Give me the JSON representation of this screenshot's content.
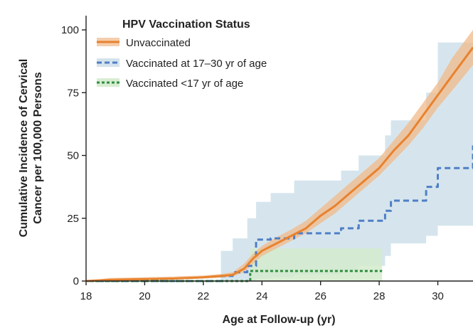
{
  "chart_data": {
    "type": "line",
    "title": "",
    "xlabel": "Age at Follow-up (yr)",
    "ylabel_lines": [
      "Cumulative Incidence of Cervical",
      "Cancer per 100,000 Persons"
    ],
    "xlim": [
      18,
      31.2
    ],
    "ylim": [
      0,
      105
    ],
    "x_ticks": [
      18,
      20,
      22,
      24,
      26,
      28,
      30
    ],
    "y_ticks": [
      0,
      25,
      50,
      75,
      100
    ],
    "grid": false,
    "legend": {
      "title": "HPV Vaccination Status",
      "placement": "top-left"
    },
    "series": [
      {
        "name": "Unvaccinated",
        "color": "#e8822e",
        "band_color": "#f0b98a",
        "line_style": "solid",
        "x": [
          18,
          18.8,
          20,
          21,
          22,
          22.6,
          23,
          23.4,
          23.7,
          24,
          24.5,
          25,
          25.5,
          26,
          26.5,
          27,
          27.5,
          28,
          28.5,
          29,
          29.5,
          30,
          30.5,
          31.2
        ],
        "y": [
          0,
          0.5,
          0.8,
          1,
          1.5,
          2,
          2.5,
          5,
          9,
          12,
          15,
          18,
          21,
          26,
          30,
          35,
          40,
          45,
          52,
          58,
          66,
          74,
          82,
          93
        ],
        "lower": [
          0,
          0.2,
          0.4,
          0.6,
          1,
          1.3,
          1.8,
          3.5,
          7,
          10,
          13,
          16,
          19,
          23,
          27,
          32,
          37,
          42,
          48,
          54,
          61,
          69,
          76,
          86
        ],
        "upper": [
          0,
          1.2,
          1.5,
          1.8,
          2.2,
          2.8,
          3.5,
          7,
          11,
          14,
          17.5,
          20.5,
          24,
          29,
          34,
          39,
          44,
          49,
          56,
          63,
          71,
          79,
          89,
          100
        ]
      },
      {
        "name": "Vaccinated at 17–30 yr of age",
        "color": "#4f7fc6",
        "band_color": "#cfe0ea",
        "line_style": "dashed",
        "step_x": [
          18,
          22.6,
          23,
          23.5,
          23.8,
          24.3,
          25.1,
          26.7,
          27.3,
          28.2,
          28.4,
          29.6,
          30,
          31.2
        ],
        "step_y": [
          0,
          2,
          3.5,
          6,
          16.5,
          17,
          19,
          21,
          24,
          28,
          32,
          37.5,
          45,
          54
        ],
        "step_lower": [
          0,
          0,
          0,
          0,
          1,
          1.5,
          2.5,
          4,
          6,
          10,
          15,
          18,
          22,
          30
        ],
        "step_upper": [
          0,
          12,
          17,
          25,
          31.5,
          35,
          40,
          44,
          50,
          58,
          64,
          75,
          95,
          100
        ]
      },
      {
        "name": "Vaccinated <17 yr of age",
        "color": "#2f8f3f",
        "band_color": "#d4ebcd",
        "line_style": "dashed",
        "step_x": [
          18,
          23.6,
          28.1
        ],
        "step_y": [
          0,
          4,
          4
        ],
        "step_lower": [
          0,
          0,
          0
        ],
        "step_upper": [
          0,
          13,
          16
        ]
      }
    ]
  }
}
